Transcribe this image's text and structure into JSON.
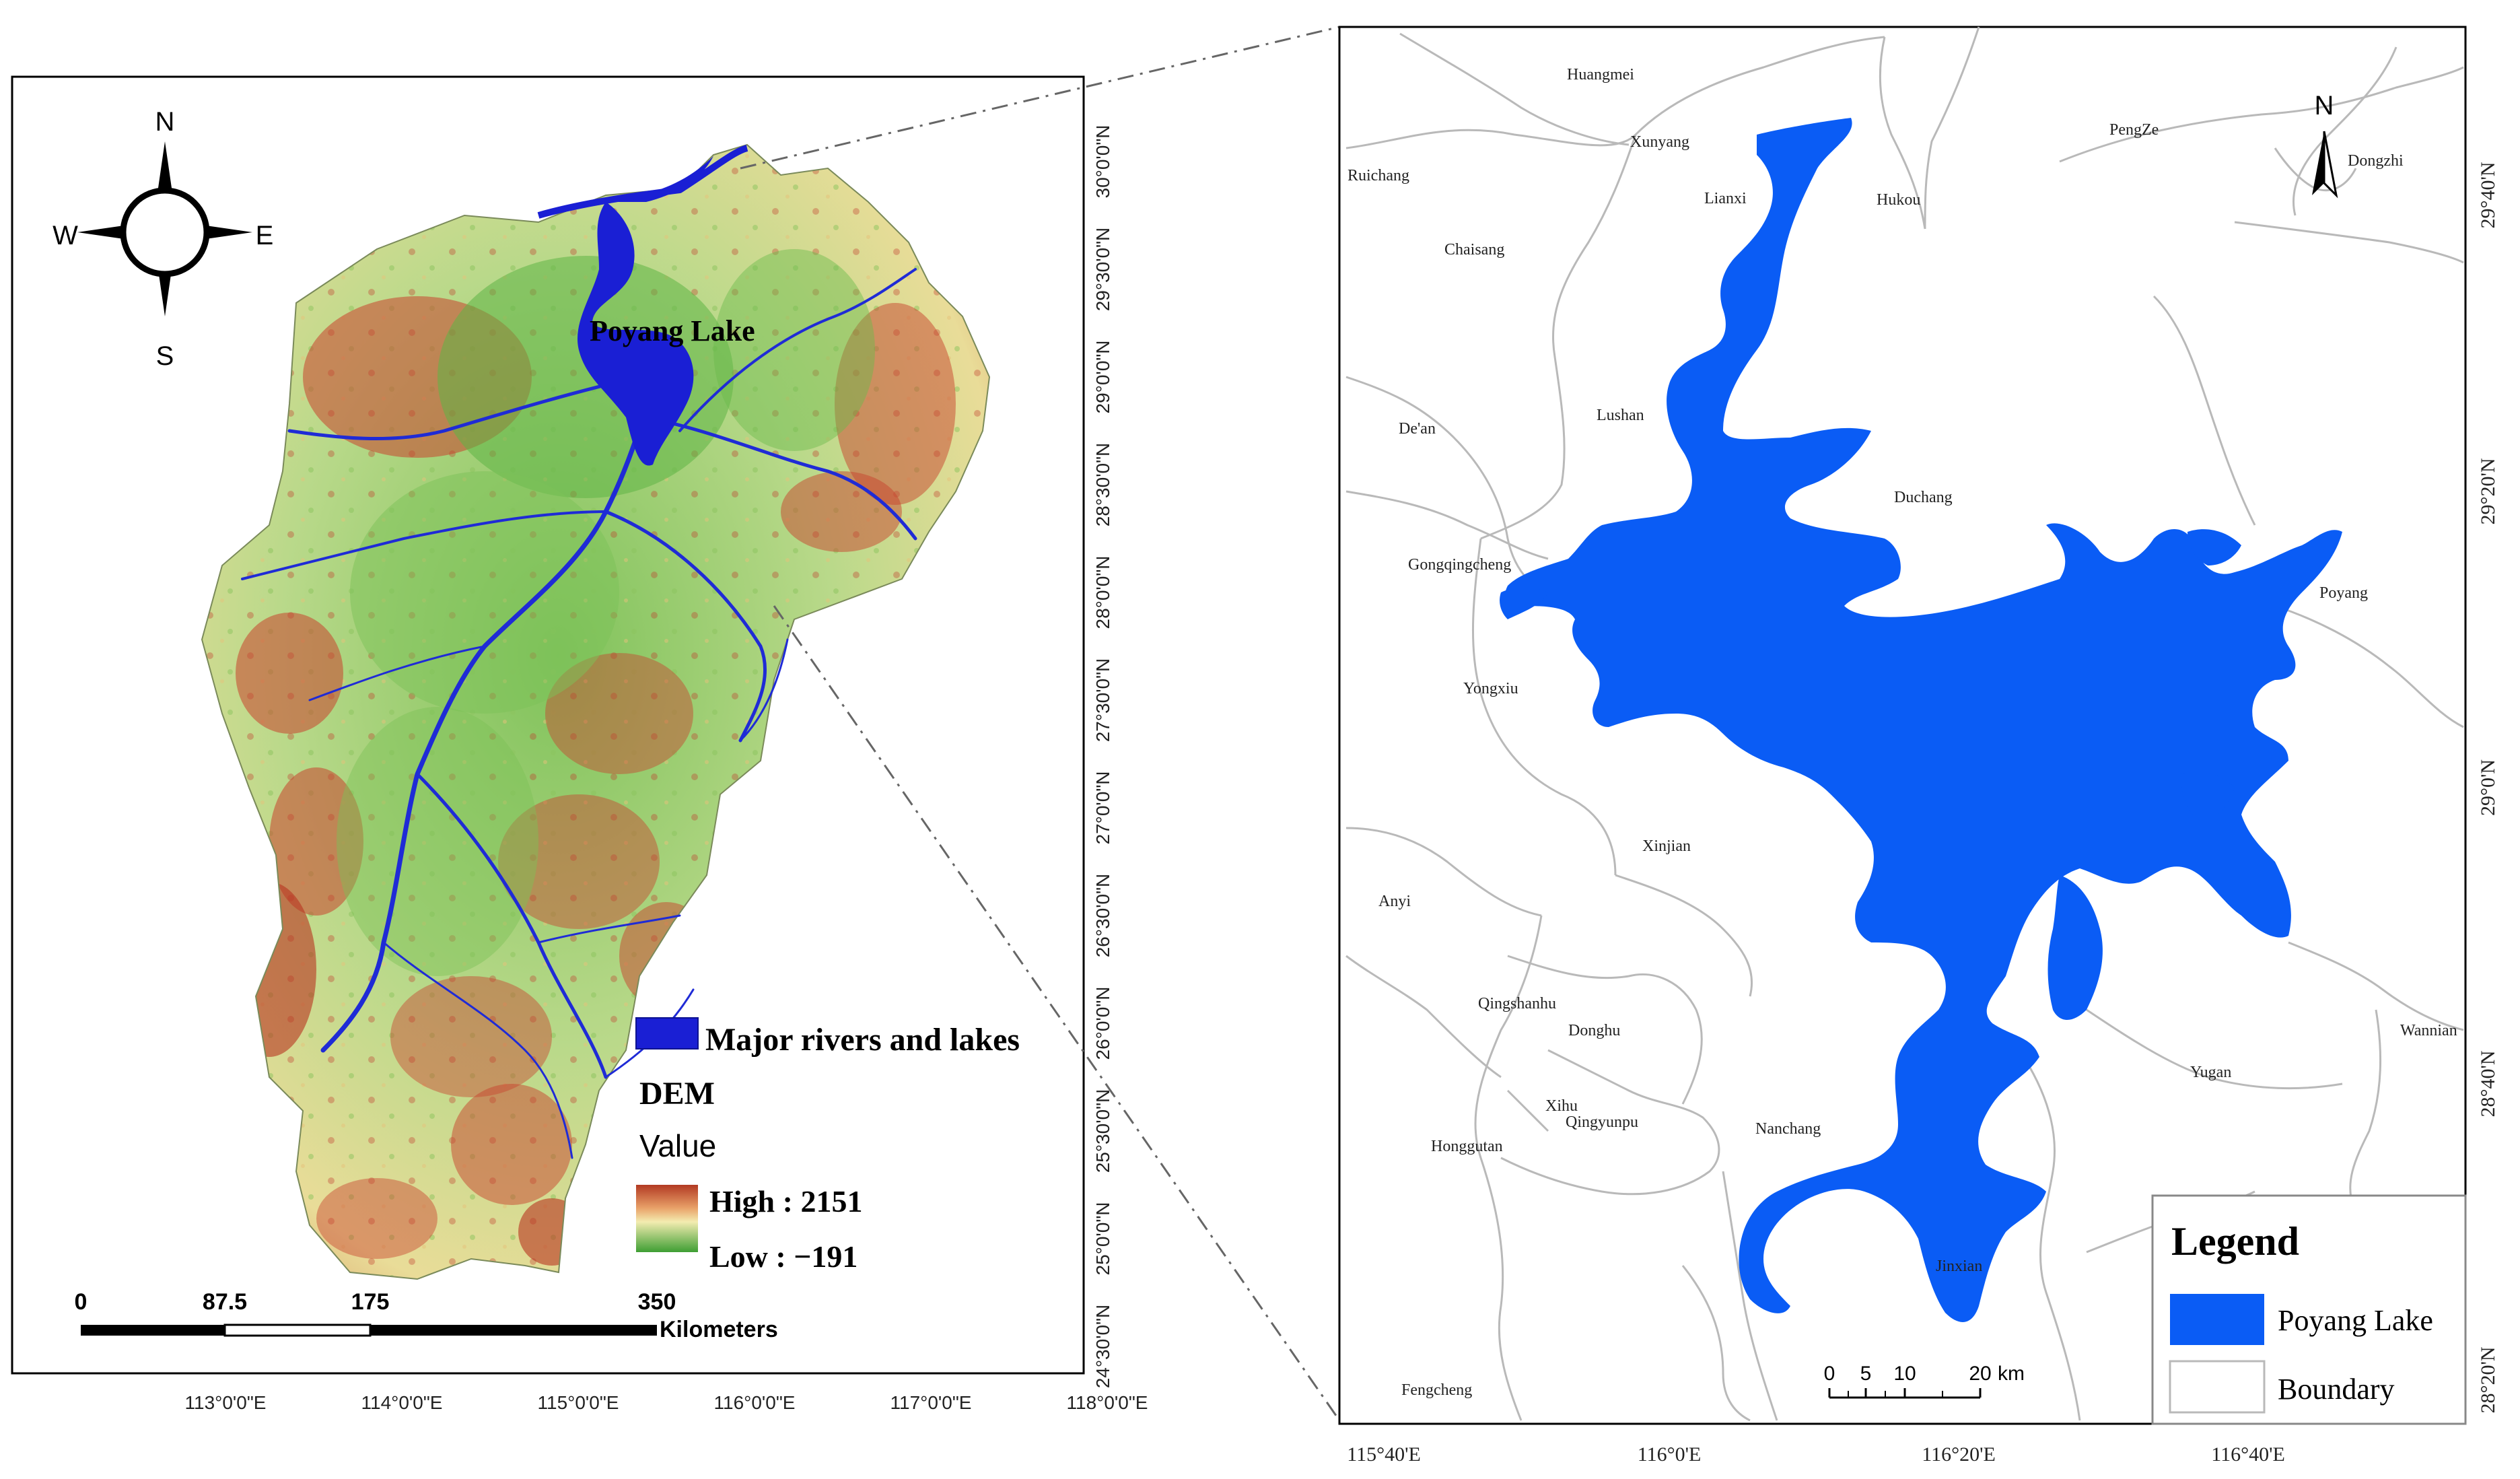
{
  "left_map": {
    "lake_label": "Poyang Lake",
    "compass": {
      "n": "N",
      "s": "S",
      "e": "E",
      "w": "W"
    },
    "legend": {
      "rivers_label": "Major rivers and lakes",
      "dem_title": "DEM",
      "value_title": "Value",
      "high_label": "High : 2151",
      "low_label": "Low :   −191"
    },
    "scale": {
      "labels": [
        "0",
        "87.5",
        "175",
        "350"
      ],
      "unit": "Kilometers"
    },
    "x_ticks": [
      "113°0'0\"E",
      "114°0'0\"E",
      "115°0'0\"E",
      "116°0'0\"E",
      "117°0'0\"E",
      "118°0'0\"E"
    ],
    "y_ticks": [
      "30°0'0\"N",
      "29°30'0\"N",
      "29°0'0\"N",
      "28°30'0\"N",
      "28°0'0\"N",
      "27°30'0\"N",
      "27°0'0\"N",
      "26°30'0\"N",
      "26°0'0\"N",
      "25°30'0\"N",
      "25°0'0\"N",
      "24°30'0\"N"
    ],
    "colors": {
      "high": "#c0392b",
      "mid": "#f2e6a0",
      "low": "#4da83a",
      "water": "#1f2bd6"
    }
  },
  "right_map": {
    "north_label": "N",
    "cities": [
      "Huangmei",
      "Xunyang",
      "Ruichang",
      "Lianxi",
      "Hukou",
      "PengZe",
      "Dongzhi",
      "Chaisang",
      "De'an",
      "Lushan",
      "Duchang",
      "Gongqingcheng",
      "Poyang",
      "Yongxiu",
      "Xinjian",
      "Anyi",
      "Qingshanhu",
      "Donghu",
      "Wannian",
      "Yugan",
      "Xihu",
      "Qingyunpu",
      "Honggutan",
      "Nanchang",
      "Jinxian",
      "Fengcheng"
    ],
    "scale": {
      "labels": [
        "0",
        "5",
        "10",
        "20"
      ],
      "unit": "km"
    },
    "x_ticks": [
      "115°40'E",
      "116°0'E",
      "116°20'E",
      "116°40'E"
    ],
    "y_ticks": [
      "29°40'N",
      "29°20'N",
      "29°0'N",
      "28°40'N",
      "28°20'N"
    ],
    "legend": {
      "title": "Legend",
      "items": [
        "Poyang Lake",
        "Boundary"
      ]
    },
    "colors": {
      "lake": "#0a5cf5",
      "boundary": "#b9b9b9"
    }
  }
}
